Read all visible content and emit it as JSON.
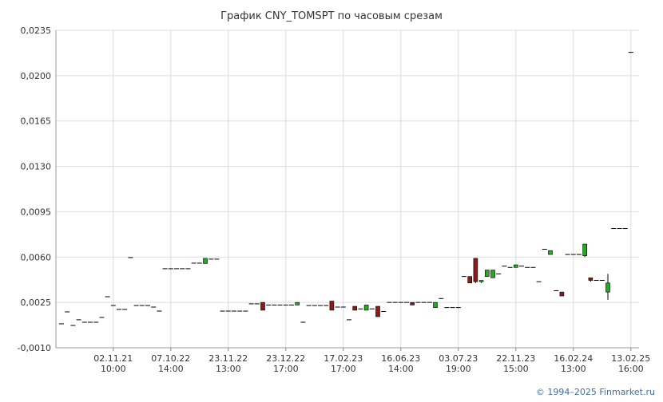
{
  "chart_data": {
    "type": "candlestick",
    "title": "График CNY_TOMSPT по часовым срезам",
    "footer": "© 1994–2025 Finmarket.ru",
    "up_color": "#22aa22",
    "down_color": "#8b1a1a",
    "flat_color": "#000000",
    "grid": true,
    "ylim": [
      -0.001,
      0.0235
    ],
    "yticks": [
      {
        "value": -0.001,
        "label": "-0,0010"
      },
      {
        "value": 0.0025,
        "label": "0,0025"
      },
      {
        "value": 0.006,
        "label": "0,0060"
      },
      {
        "value": 0.0095,
        "label": "0,0095"
      },
      {
        "value": 0.013,
        "label": "0,0130"
      },
      {
        "value": 0.0165,
        "label": "0,0165"
      },
      {
        "value": 0.02,
        "label": "0,0200"
      },
      {
        "value": 0.0235,
        "label": "0,0235"
      }
    ],
    "categories": [
      null,
      null,
      null,
      null,
      null,
      null,
      null,
      null,
      null,
      null,
      [
        "02.11.21",
        "10:00"
      ],
      null,
      null,
      null,
      null,
      null,
      null,
      null,
      null,
      null,
      [
        "07.10.22",
        "14:00"
      ],
      null,
      null,
      null,
      null,
      null,
      null,
      null,
      null,
      null,
      [
        "23.11.22",
        "13:00"
      ],
      null,
      null,
      null,
      null,
      null,
      null,
      null,
      null,
      null,
      [
        "23.12.22",
        "17:00"
      ],
      null,
      null,
      null,
      null,
      null,
      null,
      null,
      null,
      null,
      [
        "17.02.23",
        "17:00"
      ],
      null,
      null,
      null,
      null,
      null,
      null,
      null,
      null,
      null,
      [
        "16.06.23",
        "14:00"
      ],
      null,
      null,
      null,
      null,
      null,
      null,
      null,
      null,
      null,
      [
        "03.07.23",
        "19:00"
      ],
      null,
      null,
      null,
      null,
      null,
      null,
      null,
      null,
      null,
      [
        "22.11.23",
        "15:00"
      ],
      null,
      null,
      null,
      null,
      null,
      null,
      null,
      null,
      null,
      [
        "16.02.24",
        "13:00"
      ],
      null,
      null,
      null,
      null,
      null,
      null,
      null,
      null,
      null,
      [
        "13.02.25",
        "16:00"
      ]
    ],
    "open": [
      null,
      0.00085,
      0.00177,
      0.00072,
      0.00116,
      0.00097,
      0.00097,
      0.00097,
      0.00134,
      0.00294,
      0.00226,
      0.00196,
      0.00196,
      0.00596,
      0.00226,
      0.00226,
      0.00226,
      0.00214,
      0.00183,
      0.0051,
      0.0051,
      0.0051,
      0.0051,
      0.0051,
      0.00553,
      0.00553,
      0.0055,
      0.00584,
      0.00584,
      0.00183,
      0.00183,
      0.00183,
      0.00183,
      0.00183,
      0.00239,
      0.00239,
      0.0025,
      0.0023,
      0.0023,
      0.0023,
      0.0023,
      0.0023,
      0.0023,
      0.00097,
      0.00226,
      0.00226,
      0.00226,
      0.00226,
      0.0026,
      0.00214,
      0.00214,
      0.00116,
      0.0022,
      0.002,
      0.0019,
      0.002,
      0.0022,
      0.0018,
      0.0025,
      0.0025,
      0.0025,
      0.0025,
      0.0025,
      0.0025,
      0.0025,
      0.0025,
      0.0021,
      0.0028,
      0.0021,
      0.0021,
      0.0021,
      0.0045,
      0.0045,
      0.0059,
      0.0041,
      0.0045,
      0.0044,
      0.0047,
      0.0053,
      0.0052,
      0.0052,
      0.0053,
      0.0052,
      0.0052,
      0.0041,
      0.0066,
      0.0062,
      0.0034,
      0.0033,
      0.0062,
      0.0062,
      0.0062,
      0.0061,
      0.0044,
      0.0042,
      0.0042,
      0.0033,
      0.0082,
      0.0082,
      0.0082,
      0.0218
    ],
    "high": [
      null,
      0.00085,
      0.00177,
      0.00072,
      0.00116,
      0.00097,
      0.00097,
      0.00097,
      0.00134,
      0.00294,
      0.00226,
      0.00196,
      0.00196,
      0.00596,
      0.00226,
      0.00226,
      0.00226,
      0.00214,
      0.00183,
      0.0051,
      0.0051,
      0.0051,
      0.0051,
      0.0051,
      0.00553,
      0.00553,
      0.0059,
      0.00584,
      0.00584,
      0.00183,
      0.00183,
      0.00183,
      0.00183,
      0.00183,
      0.00239,
      0.00239,
      0.0025,
      0.0023,
      0.0023,
      0.0023,
      0.0023,
      0.0023,
      0.0025,
      0.00097,
      0.00226,
      0.00226,
      0.00226,
      0.00226,
      0.0026,
      0.00214,
      0.00214,
      0.00116,
      0.0022,
      0.002,
      0.0023,
      0.002,
      0.0022,
      0.0018,
      0.0025,
      0.0025,
      0.0025,
      0.0025,
      0.0025,
      0.0025,
      0.0025,
      0.0025,
      0.0025,
      0.0028,
      0.0021,
      0.0021,
      0.0021,
      0.0045,
      0.0045,
      0.0059,
      0.0042,
      0.005,
      0.005,
      0.0047,
      0.0053,
      0.0052,
      0.0054,
      0.0053,
      0.0052,
      0.0052,
      0.0041,
      0.0066,
      0.0065,
      0.0034,
      0.0033,
      0.0062,
      0.0062,
      0.0062,
      0.007,
      0.0044,
      0.0042,
      0.0042,
      0.0047,
      0.0082,
      0.0082,
      0.0082,
      0.0218
    ],
    "low": [
      null,
      0.00085,
      0.00177,
      0.00072,
      0.00116,
      0.00097,
      0.00097,
      0.00097,
      0.00134,
      0.00294,
      0.00226,
      0.00196,
      0.00196,
      0.00596,
      0.00226,
      0.00226,
      0.00226,
      0.00214,
      0.00183,
      0.0051,
      0.0051,
      0.0051,
      0.0051,
      0.0051,
      0.00553,
      0.00553,
      0.0055,
      0.00584,
      0.00584,
      0.00183,
      0.00183,
      0.00183,
      0.00183,
      0.00183,
      0.00239,
      0.00239,
      0.0019,
      0.0023,
      0.0023,
      0.0023,
      0.0023,
      0.0023,
      0.0023,
      0.00097,
      0.00226,
      0.00226,
      0.00226,
      0.00226,
      0.0019,
      0.00214,
      0.00214,
      0.00116,
      0.0019,
      0.002,
      0.0019,
      0.002,
      0.0014,
      0.0018,
      0.0025,
      0.0025,
      0.0025,
      0.0025,
      0.0023,
      0.0025,
      0.0025,
      0.0025,
      0.0021,
      0.0028,
      0.0021,
      0.0021,
      0.0021,
      0.0045,
      0.004,
      0.004,
      0.004,
      0.0045,
      0.0044,
      0.0047,
      0.0053,
      0.0052,
      0.0052,
      0.0053,
      0.0052,
      0.0052,
      0.0041,
      0.0066,
      0.0062,
      0.0034,
      0.003,
      0.0062,
      0.0062,
      0.0062,
      0.006,
      0.0041,
      0.0042,
      0.0042,
      0.0027,
      0.0082,
      0.0082,
      0.0082,
      0.0218
    ],
    "close": [
      null,
      0.00085,
      0.00177,
      0.00072,
      0.00116,
      0.00097,
      0.00097,
      0.00097,
      0.00134,
      0.00294,
      0.00226,
      0.00196,
      0.00196,
      0.00596,
      0.00226,
      0.00226,
      0.00226,
      0.00214,
      0.00183,
      0.0051,
      0.0051,
      0.0051,
      0.0051,
      0.0051,
      0.00553,
      0.00553,
      0.0059,
      0.00584,
      0.00584,
      0.00183,
      0.00183,
      0.00183,
      0.00183,
      0.00183,
      0.00239,
      0.00239,
      0.0019,
      0.0023,
      0.0023,
      0.0023,
      0.0023,
      0.0023,
      0.0025,
      0.00097,
      0.00226,
      0.00226,
      0.00226,
      0.00226,
      0.0019,
      0.00214,
      0.00214,
      0.00116,
      0.0019,
      0.002,
      0.0023,
      0.002,
      0.0014,
      0.0018,
      0.0025,
      0.0025,
      0.0025,
      0.0025,
      0.0023,
      0.0025,
      0.0025,
      0.0025,
      0.0025,
      0.0028,
      0.0021,
      0.0021,
      0.0021,
      0.0045,
      0.004,
      0.0041,
      0.0042,
      0.005,
      0.005,
      0.0047,
      0.0053,
      0.0052,
      0.0054,
      0.0053,
      0.0052,
      0.0052,
      0.0041,
      0.0066,
      0.0065,
      0.0034,
      0.003,
      0.0062,
      0.0062,
      0.0062,
      0.007,
      0.0042,
      0.0042,
      0.0042,
      0.004,
      0.0082,
      0.0082,
      0.0082,
      0.0218
    ]
  }
}
